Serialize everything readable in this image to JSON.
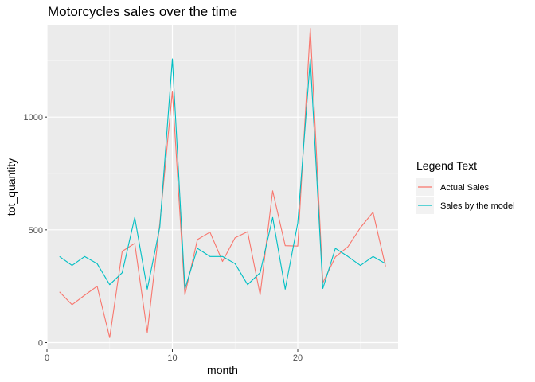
{
  "chart_data": {
    "type": "line",
    "title": "Motorcycles  sales over the time",
    "xlabel": "month",
    "ylabel": "tot_quantity",
    "xlim": [
      0,
      28
    ],
    "ylim": [
      -30,
      1410
    ],
    "x_ticks": [
      0,
      10,
      20
    ],
    "y_ticks": [
      0,
      500,
      1000
    ],
    "grid": true,
    "legend": {
      "title": "Legend Text",
      "position": "right"
    },
    "x": [
      1,
      2,
      3,
      4,
      5,
      6,
      7,
      8,
      9,
      10,
      11,
      12,
      13,
      14,
      15,
      16,
      17,
      18,
      19,
      20,
      21,
      22,
      23,
      24,
      25,
      26,
      27
    ],
    "series": [
      {
        "name": "Actual Sales",
        "color": "#F8766D",
        "values": [
          225,
          168,
          210,
          250,
          22,
          405,
          440,
          45,
          530,
          1115,
          212,
          457,
          490,
          360,
          465,
          492,
          212,
          673,
          430,
          428,
          1395,
          265,
          380,
          425,
          510,
          578,
          338
        ]
      },
      {
        "name": "Sales by the model",
        "color": "#00BFC4",
        "values": [
          382,
          342,
          382,
          350,
          257,
          310,
          555,
          237,
          513,
          1258,
          238,
          418,
          382,
          382,
          350,
          257,
          310,
          555,
          237,
          530,
          1258,
          240,
          418,
          382,
          342,
          382,
          350
        ]
      }
    ]
  }
}
